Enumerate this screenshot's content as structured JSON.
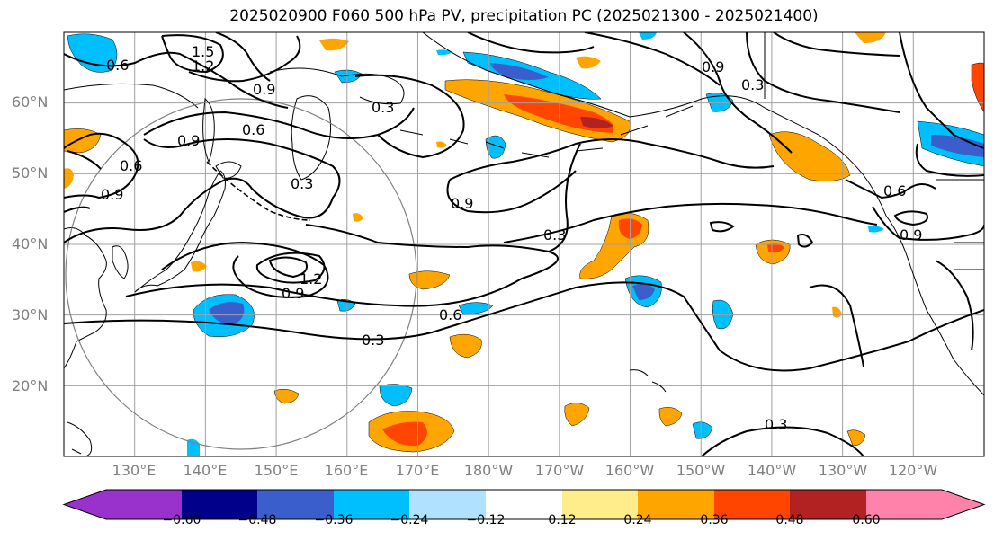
{
  "title": "2025020900 F060 500 hPa PV, precipitation PC (2025021300 - 2025021400)",
  "map": {
    "projection": "equirectangular",
    "lon_range": [
      120,
      250
    ],
    "lat_range": [
      10,
      70
    ],
    "lat_labels": [
      "60°N",
      "50°N",
      "40°N",
      "30°N",
      "20°N"
    ],
    "lon_labels": [
      "130°E",
      "140°E",
      "150°E",
      "160°E",
      "170°E",
      "180°W",
      "170°W",
      "160°W",
      "150°W",
      "140°W",
      "130°W",
      "120°W"
    ],
    "grid_color": "#a0a0a0",
    "coast_color": "#000000",
    "contour_color": "#000000",
    "circle_color": "#808080",
    "contour_labels": [
      "1.5",
      "1.2",
      "0.9",
      "0.6",
      "0.6",
      "0.6",
      "0.9",
      "0.3",
      "0.3",
      "0.9",
      "0.9",
      "0.3",
      "0.6",
      "0.9",
      "0.3",
      "1.2",
      "0.3",
      "0.9",
      "0.9",
      "0.6",
      "0.3"
    ]
  },
  "colorbar": {
    "ticks": [
      "−0.60",
      "−0.48",
      "−0.36",
      "−0.24",
      "−0.12",
      "0.12",
      "0.24",
      "0.36",
      "0.48",
      "0.60"
    ],
    "colors": [
      "#9932cc",
      "#00008b",
      "#3a5fcd",
      "#00bfff",
      "#b0e2ff",
      "#ffffff",
      "#ffec8b",
      "#ffa500",
      "#ff4500",
      "#b22222",
      "#ff82ab"
    ]
  }
}
